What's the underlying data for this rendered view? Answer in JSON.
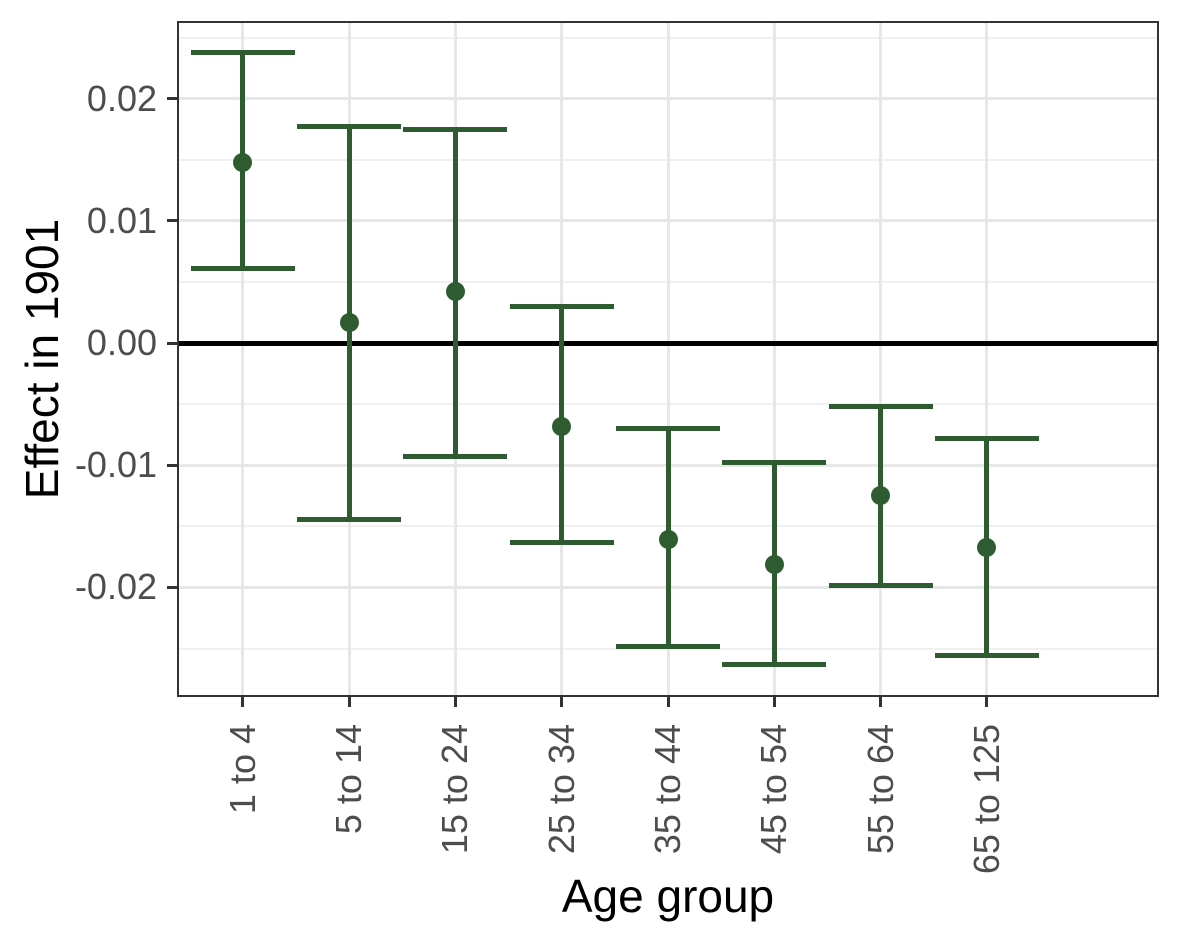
{
  "chart_data": {
    "type": "scatter",
    "subtype": "pointrange-errorbar",
    "title": "",
    "xlabel": "Age group",
    "ylabel": "Effect in 1901",
    "categories": [
      "1 to 4",
      "5 to 14",
      "15 to 24",
      "25 to 34",
      "35 to 44",
      "45 to 54",
      "55 to 64",
      "65 to 125"
    ],
    "series": [
      {
        "name": "Effect in 1901",
        "estimates": [
          0.0148,
          0.0017,
          0.0042,
          -0.0068,
          -0.0161,
          -0.0181,
          -0.0125,
          -0.0167
        ],
        "ci_low": [
          0.0061,
          -0.0144,
          -0.0093,
          -0.0163,
          -0.0248,
          -0.0263,
          -0.0198,
          -0.0256
        ],
        "ci_high": [
          0.0238,
          0.0177,
          0.0175,
          0.003,
          -0.007,
          -0.0098,
          -0.0052,
          -0.0078
        ]
      }
    ],
    "reference_line_y": 0,
    "ylim": [
      -0.0288,
      0.0262
    ],
    "y_major_ticks": [
      0.02,
      0.01,
      0,
      -0.01,
      -0.02
    ],
    "y_tick_labels": [
      "0.02",
      "0.01",
      "0.00",
      "-0.01",
      "-0.02"
    ],
    "y_minor_gridlines": [
      0.025,
      0.015,
      0.005,
      -0.005,
      -0.015,
      -0.025
    ],
    "grid": "on",
    "legend": "none",
    "colors": {
      "point": "#2e5b30",
      "errorbar": "#2e5b30",
      "reference_line": "#000000",
      "grid_major": "#e7e7e7",
      "grid_minor": "#f0f0f0",
      "axis_text": "#4d4d4d",
      "axis_title": "#000000",
      "panel_border": "#333333",
      "background": "#ffffff"
    }
  }
}
